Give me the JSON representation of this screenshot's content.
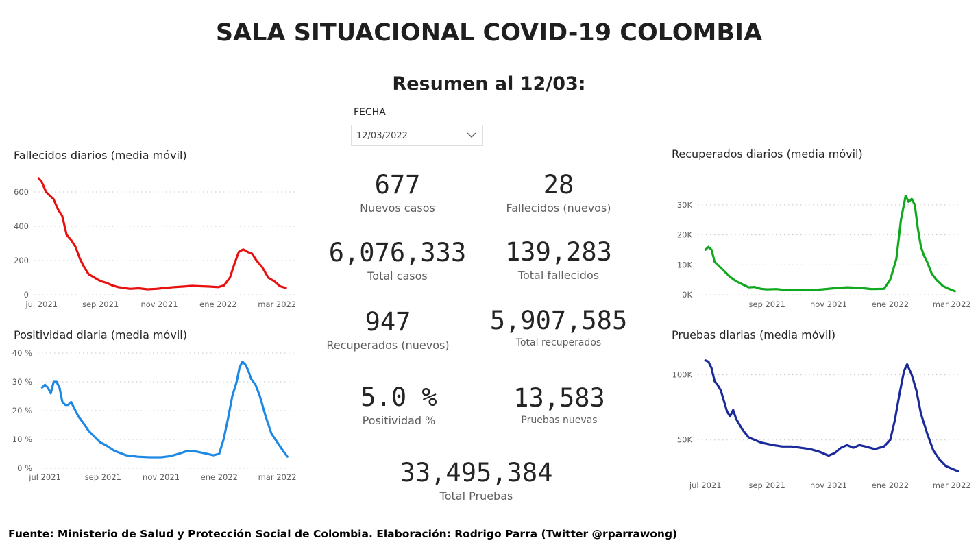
{
  "header": {
    "title": "SALA SITUACIONAL COVID-19 COLOMBIA",
    "subtitle": "Resumen al 12/03:"
  },
  "filter": {
    "label": "FECHA",
    "value": "12/03/2022",
    "icon": "chevron-down-icon"
  },
  "kpis": {
    "nuevos_casos": {
      "value": "677",
      "label": "Nuevos casos"
    },
    "fallecidos_nuevos": {
      "value": "28",
      "label": "Fallecidos (nuevos)"
    },
    "total_casos": {
      "value": "6,076,333",
      "label": "Total casos"
    },
    "total_fallecidos": {
      "value": "139,283",
      "label": "Total fallecidos"
    },
    "recuperados_nuevos": {
      "value": "947",
      "label": "Recuperados (nuevos)"
    },
    "total_recuperados": {
      "value": "5,907,585",
      "label": "Total recuperados"
    },
    "positividad": {
      "value": "5.0 %",
      "label": "Positividad %"
    },
    "pruebas_nuevas": {
      "value": "13,583",
      "label": "Pruebas nuevas"
    },
    "total_pruebas": {
      "value": "33,495,384",
      "label": "Total Pruebas"
    }
  },
  "footer": {
    "text": "Fuente: Ministerio de Salud y Protección Social de Colombia. Elaboración: Rodrigo Parra (Twitter @rparrawong)"
  },
  "chart_data": [
    {
      "id": "fallecidos",
      "type": "line",
      "title": "Fallecidos diarios (media móvil)",
      "color": "#e8110f",
      "x_ticks": [
        "jul 2021",
        "sep 2021",
        "nov 2021",
        "ene 2022",
        "mar 2022"
      ],
      "x_tick_positions": [
        0,
        2,
        4,
        6,
        8
      ],
      "x_range": [
        -0.25,
        8.6
      ],
      "y_ticks": [
        "0",
        "200",
        "400",
        "600"
      ],
      "y_tick_values": [
        0,
        200,
        400,
        600
      ],
      "ylim": [
        0,
        700
      ],
      "grid": true,
      "x": [
        -0.1,
        0.0,
        0.15,
        0.3,
        0.4,
        0.55,
        0.7,
        0.85,
        1.0,
        1.15,
        1.3,
        1.45,
        1.6,
        1.8,
        2.0,
        2.2,
        2.4,
        2.6,
        2.8,
        3.0,
        3.3,
        3.6,
        3.9,
        4.2,
        4.5,
        4.8,
        5.1,
        5.4,
        5.7,
        6.0,
        6.2,
        6.4,
        6.55,
        6.7,
        6.85,
        7.0,
        7.15,
        7.3,
        7.5,
        7.7,
        7.9,
        8.1,
        8.3
      ],
      "values": [
        680,
        660,
        600,
        575,
        560,
        500,
        460,
        350,
        320,
        280,
        210,
        160,
        120,
        100,
        80,
        70,
        55,
        45,
        40,
        35,
        38,
        32,
        35,
        40,
        45,
        48,
        52,
        50,
        48,
        45,
        55,
        100,
        180,
        250,
        265,
        250,
        240,
        200,
        160,
        100,
        80,
        50,
        40
      ]
    },
    {
      "id": "positividad",
      "type": "line",
      "title": "Positividad diaria (media móvil)",
      "color": "#1e88e5",
      "x_ticks": [
        "jul 2021",
        "sep 2021",
        "nov 2021",
        "ene 2022",
        "mar 2022"
      ],
      "x_tick_positions": [
        0,
        2,
        4,
        6,
        8
      ],
      "x_range": [
        -0.25,
        8.6
      ],
      "y_ticks": [
        "0 %",
        "10 %",
        "20 %",
        "30 %",
        "40 %"
      ],
      "y_tick_values": [
        0,
        10,
        20,
        30,
        40
      ],
      "ylim": [
        0,
        40
      ],
      "grid": true,
      "x": [
        -0.1,
        0.0,
        0.1,
        0.2,
        0.3,
        0.4,
        0.5,
        0.6,
        0.7,
        0.8,
        0.9,
        1.0,
        1.15,
        1.3,
        1.5,
        1.7,
        1.9,
        2.1,
        2.4,
        2.8,
        3.2,
        3.6,
        4.0,
        4.3,
        4.6,
        4.9,
        5.2,
        5.5,
        5.8,
        6.0,
        6.15,
        6.3,
        6.45,
        6.6,
        6.7,
        6.8,
        6.9,
        7.0,
        7.1,
        7.25,
        7.4,
        7.6,
        7.8,
        8.0,
        8.2,
        8.35
      ],
      "values": [
        28,
        29,
        28,
        26,
        30,
        30,
        28,
        23,
        22,
        22,
        23,
        21,
        18,
        16,
        13,
        11,
        9,
        8,
        6,
        4.5,
        4,
        3.8,
        3.8,
        4.2,
        5,
        6,
        5.8,
        5.2,
        4.5,
        5,
        10,
        17,
        25,
        30,
        35,
        37,
        36,
        34,
        31,
        29,
        25,
        18,
        12,
        9,
        6,
        4
      ]
    },
    {
      "id": "recuperados",
      "type": "line",
      "title": "Recuperados diarios (media móvil)",
      "color": "#0fa81f",
      "x_ticks": [
        "sep 2021",
        "nov 2021",
        "ene 2022",
        "mar 2022"
      ],
      "x_tick_positions": [
        2,
        4,
        6,
        8
      ],
      "x_range": [
        -0.25,
        8.25
      ],
      "y_ticks": [
        "0K",
        "10K",
        "20K",
        "30K"
      ],
      "y_tick_values": [
        0,
        10000,
        20000,
        30000
      ],
      "ylim": [
        0,
        35000
      ],
      "grid": true,
      "x": [
        0.0,
        0.1,
        0.2,
        0.3,
        0.45,
        0.6,
        0.8,
        1.0,
        1.2,
        1.4,
        1.6,
        1.8,
        2.0,
        2.3,
        2.6,
        3.0,
        3.4,
        3.8,
        4.2,
        4.6,
        5.0,
        5.4,
        5.8,
        6.0,
        6.2,
        6.35,
        6.5,
        6.6,
        6.7,
        6.8,
        6.9,
        7.0,
        7.1,
        7.2,
        7.35,
        7.5,
        7.7,
        7.9,
        8.1
      ],
      "values": [
        15000,
        16000,
        15000,
        11000,
        9500,
        8000,
        6000,
        4500,
        3500,
        2500,
        2600,
        2000,
        1800,
        1900,
        1600,
        1600,
        1500,
        1800,
        2200,
        2500,
        2300,
        1900,
        2000,
        5000,
        12000,
        25000,
        33000,
        31000,
        32000,
        30000,
        22000,
        16000,
        13000,
        11000,
        7000,
        5000,
        3000,
        2000,
        1200
      ]
    },
    {
      "id": "pruebas",
      "type": "line",
      "title": "Pruebas diarias (media móvil)",
      "color": "#1a2a9a",
      "x_ticks": [
        "jul 2021",
        "sep 2021",
        "nov 2021",
        "ene 2022",
        "mar 2022"
      ],
      "x_tick_positions": [
        0,
        2,
        4,
        6,
        8
      ],
      "x_range": [
        -0.25,
        8.25
      ],
      "y_ticks": [
        "50K",
        "100K"
      ],
      "y_tick_values": [
        50000,
        100000
      ],
      "ylim": [
        22000,
        114000
      ],
      "grid": true,
      "x": [
        0.0,
        0.1,
        0.2,
        0.3,
        0.4,
        0.5,
        0.6,
        0.7,
        0.8,
        0.9,
        1.0,
        1.1,
        1.2,
        1.3,
        1.4,
        1.6,
        1.8,
        2.0,
        2.2,
        2.5,
        2.8,
        3.1,
        3.4,
        3.7,
        4.0,
        4.2,
        4.4,
        4.6,
        4.8,
        5.0,
        5.2,
        5.5,
        5.8,
        6.0,
        6.15,
        6.3,
        6.45,
        6.55,
        6.7,
        6.85,
        7.0,
        7.2,
        7.4,
        7.6,
        7.8,
        8.0,
        8.2
      ],
      "values": [
        111000,
        110000,
        105000,
        95000,
        92000,
        88000,
        80000,
        72000,
        68000,
        73000,
        66000,
        62000,
        58000,
        55000,
        52000,
        50000,
        48000,
        47000,
        46000,
        45000,
        45000,
        44000,
        43000,
        41000,
        38000,
        40000,
        44000,
        46000,
        44000,
        46000,
        45000,
        43000,
        45000,
        50000,
        65000,
        85000,
        103000,
        108000,
        100000,
        88000,
        70000,
        55000,
        42000,
        35000,
        30000,
        28000,
        26000
      ]
    }
  ]
}
